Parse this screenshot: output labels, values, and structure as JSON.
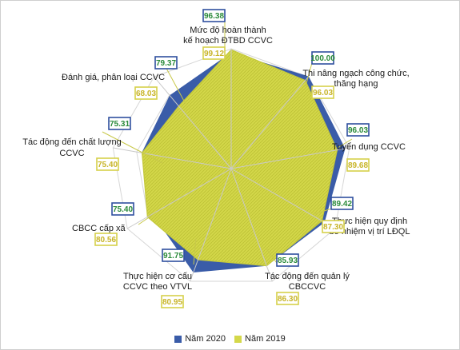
{
  "chart_data": {
    "type": "radar",
    "categories": [
      [
        "Mức độ hoàn thành",
        "kế hoạch ĐTBD CCVC"
      ],
      [
        "Thi nâng ngạch công chức,",
        "thăng hạng"
      ],
      [
        "Tuyển dụng CCVC"
      ],
      [
        "Thực hiện quy định",
        "bổ nhiệm vị trí LĐQL"
      ],
      [
        "Tác động đến quản lý",
        "CBCCVC"
      ],
      [
        "Thực hiện cơ cấu",
        "CCVC theo VTVL"
      ],
      [
        "CBCC cấp xã"
      ],
      [
        "Tác động đến chất lượng",
        "CCVC"
      ],
      [
        "Đánh giá, phân loại CCVC"
      ]
    ],
    "series": [
      {
        "name": "Năm 2020",
        "color": "#3a5ca8",
        "label_text_color": "#2a8a3a",
        "values": [
          96.38,
          100.0,
          96.03,
          89.42,
          85.93,
          91.75,
          75.4,
          75.31,
          79.37
        ],
        "labels": [
          "96.38",
          "100.00",
          "96.03",
          "89.42",
          "85.93",
          "91.75",
          "75.40",
          "75.31",
          "79.37"
        ]
      },
      {
        "name": "Năm 2019",
        "color": "#d4d84a",
        "label_text_color": "#c8b428",
        "values": [
          99.12,
          96.03,
          89.68,
          87.3,
          86.3,
          80.95,
          80.56,
          75.4,
          68.03
        ],
        "labels": [
          "99.12",
          "96.03",
          "89.68",
          "87.30",
          "86.30",
          "80.95",
          "80.56",
          "75.40",
          "68.03"
        ]
      }
    ],
    "range": [
      0,
      100
    ],
    "grid": true,
    "legend": "bottom"
  }
}
